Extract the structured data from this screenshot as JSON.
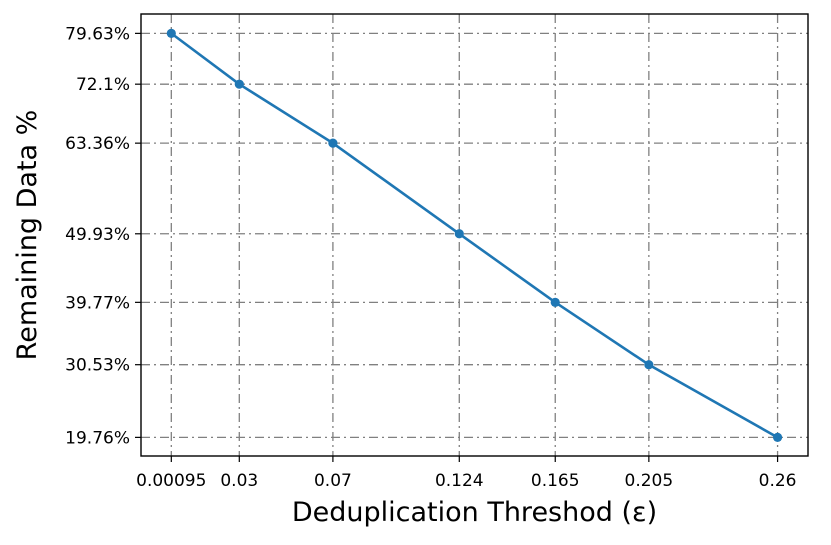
{
  "chart_data": {
    "type": "line",
    "title": "",
    "xlabel": "Deduplication Threshod (ε)",
    "ylabel": "Remaining Data %",
    "x": [
      0.00095,
      0.03,
      0.07,
      0.124,
      0.165,
      0.205,
      0.26
    ],
    "x_tick_labels": [
      "0.00095",
      "0.03",
      "0.07",
      "0.124",
      "0.165",
      "0.205",
      "0.26"
    ],
    "y_tick_labels": [
      "79.63%",
      "72.1%",
      "63.36%",
      "49.93%",
      "39.77%",
      "30.53%",
      "19.76%"
    ],
    "series": [
      {
        "values": [
          79.63,
          72.1,
          63.36,
          49.93,
          39.77,
          30.53,
          19.76
        ],
        "color": "#1f77b4"
      }
    ],
    "xlim": [
      -0.012,
      0.273
    ],
    "ylim": [
      17.0,
      82.5
    ],
    "grid": true,
    "grid_style": "dash-dot",
    "grid_color": "#808080",
    "marker": "circle"
  }
}
